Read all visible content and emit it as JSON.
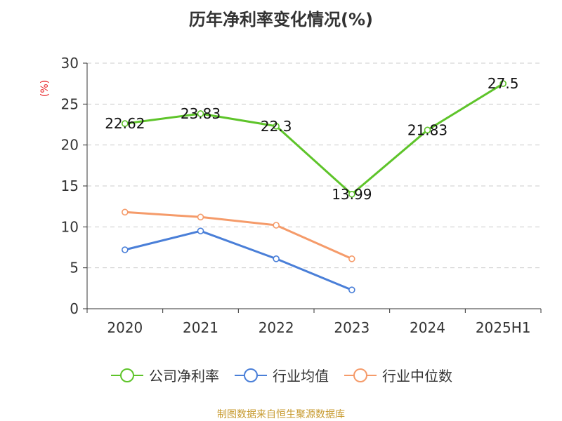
{
  "chart_data": {
    "type": "line",
    "title": "历年净利率变化情况(%)",
    "y_unit_label": "(%)",
    "categories": [
      "2020",
      "2021",
      "2022",
      "2023",
      "2024",
      "2025H1"
    ],
    "ylim": [
      0,
      30
    ],
    "yticks": [
      0,
      5,
      10,
      15,
      20,
      25,
      30
    ],
    "grid": true,
    "legend_position": "bottom",
    "series": [
      {
        "name": "公司净利率",
        "color": "#5ec42a",
        "values": [
          22.62,
          23.83,
          22.3,
          13.99,
          21.83,
          27.5
        ],
        "labels": [
          "22.62",
          "23.83",
          "22.3",
          "13.99",
          "21.83",
          "27.5"
        ]
      },
      {
        "name": "行业均值",
        "color": "#4a7fd8",
        "values": [
          7.2,
          9.5,
          6.1,
          2.3,
          null,
          null
        ]
      },
      {
        "name": "行业中位数",
        "color": "#f59b6a",
        "values": [
          11.8,
          11.2,
          10.2,
          6.1,
          null,
          null
        ]
      }
    ]
  },
  "source_note": "制图数据来自恒生聚源数据库"
}
